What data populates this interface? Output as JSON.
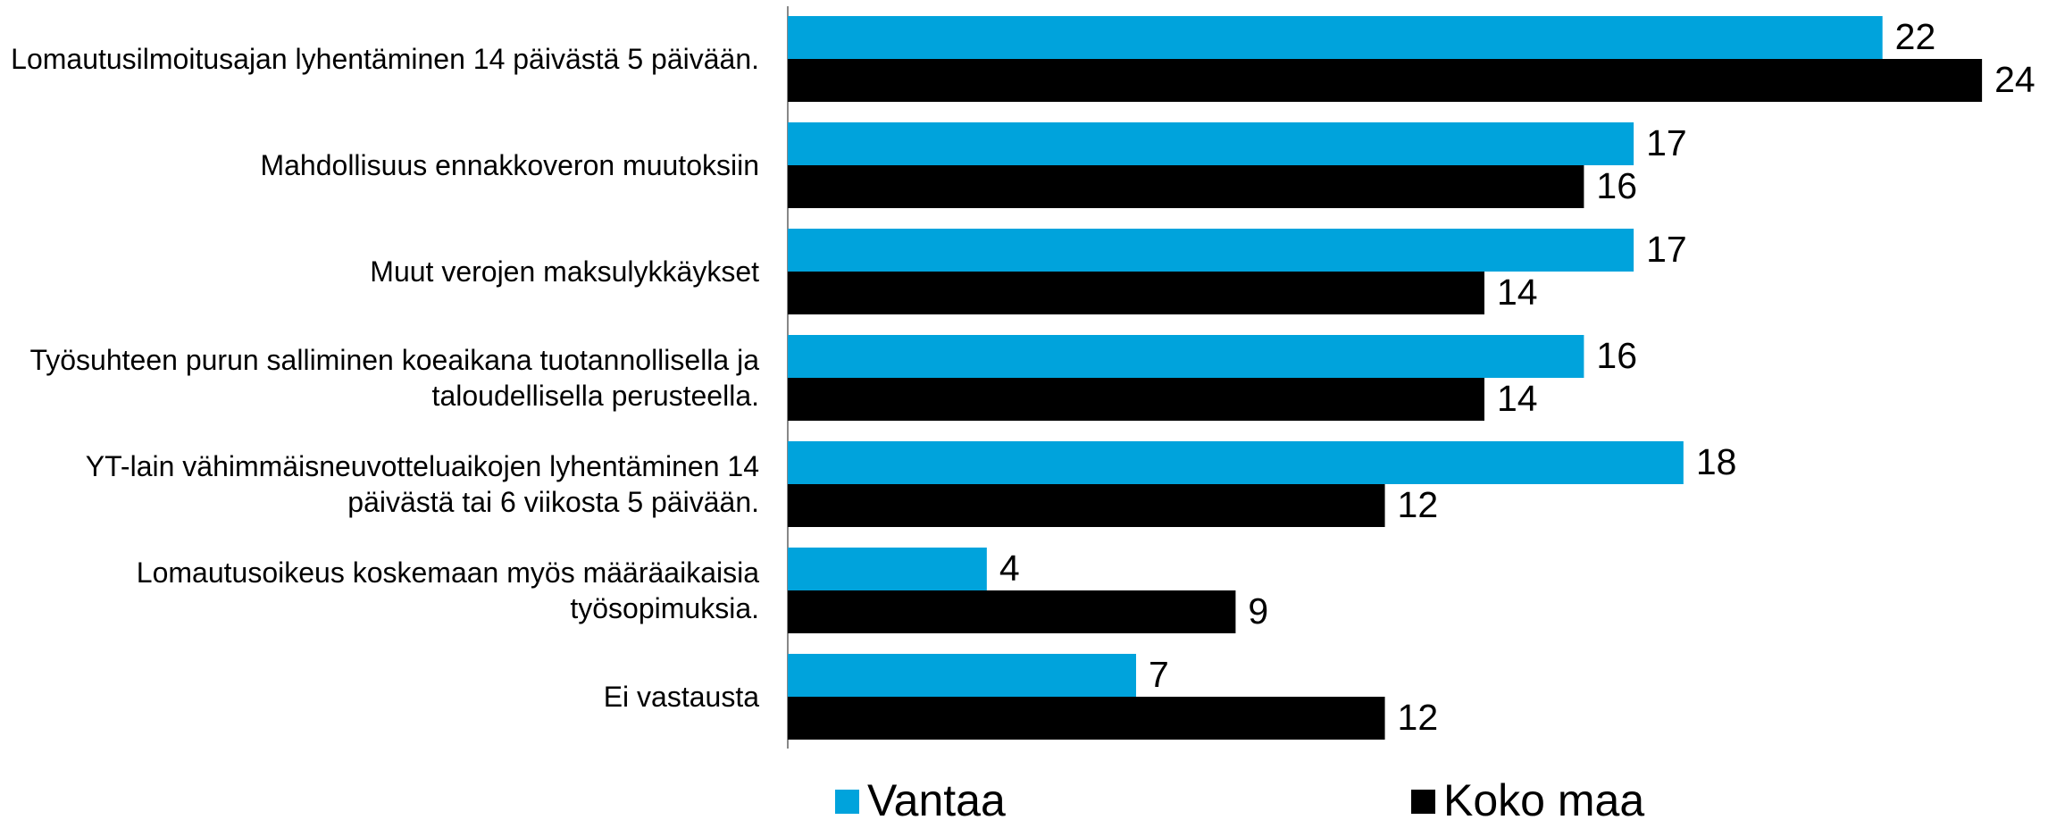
{
  "chart_data": {
    "type": "hbar",
    "categories": [
      "Lomautusilmoitusajan lyhentäminen 14 päivästä 5 päivään.",
      "Mahdollisuus ennakkoveron muutoksiin",
      "Muut verojen maksulykkäykset",
      "Työsuhteen purun salliminen koeaikana tuotannollisella ja taloudellisella perusteella.",
      "YT-lain vähimmäisneuvotteluaikojen lyhentäminen 14 päivästä tai 6 viikosta 5 päivään.",
      "Lomautusoikeus koskemaan myös määräaikaisia työsopimuksia.",
      "Ei vastausta"
    ],
    "series": [
      {
        "name": "Vantaa",
        "color": "#00a3dc",
        "values": [
          22,
          17,
          17,
          16,
          18,
          4,
          7
        ]
      },
      {
        "name": "Koko maa",
        "color": "#000000",
        "values": [
          24,
          16,
          14,
          14,
          12,
          9,
          12
        ]
      }
    ],
    "legend": "bottom"
  }
}
